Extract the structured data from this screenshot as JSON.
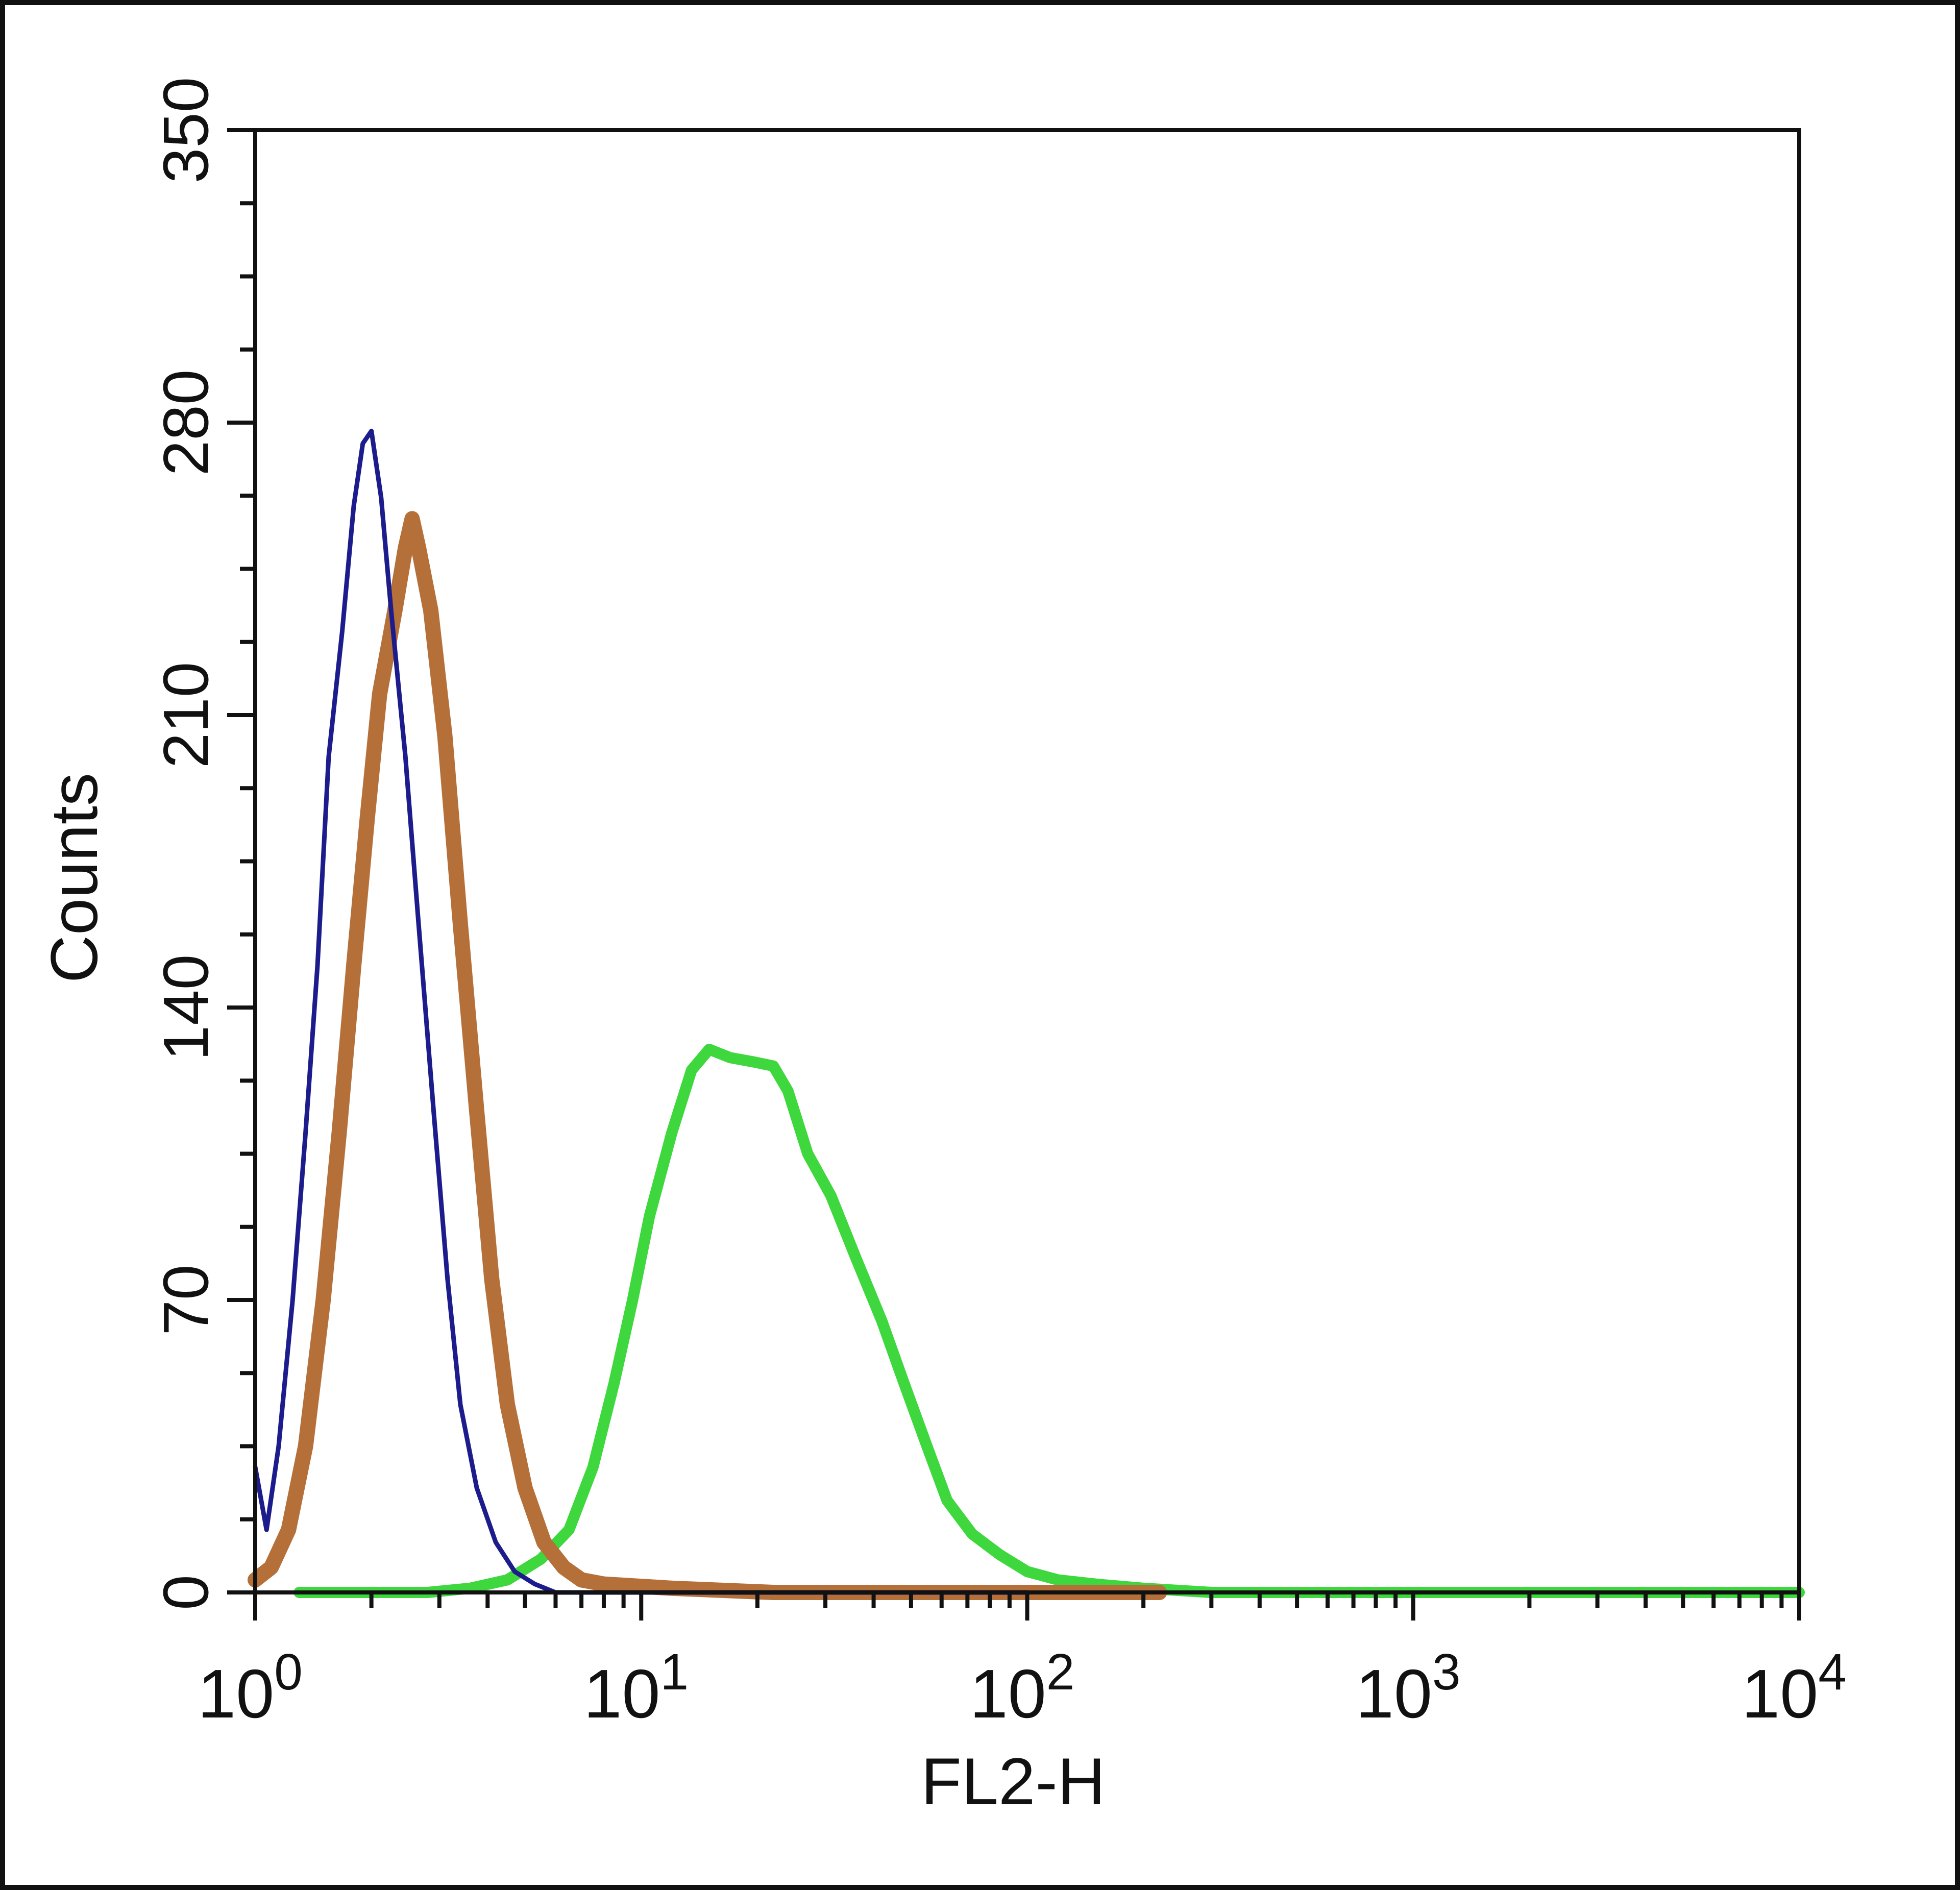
{
  "chart_data": {
    "type": "line",
    "title": "",
    "xlabel": "FL2-H",
    "ylabel": "Counts",
    "x_scale": "log",
    "xlim": [
      1,
      10000
    ],
    "ylim": [
      0,
      350
    ],
    "x_ticks": [
      {
        "value": 1,
        "base": "10",
        "exp": "0"
      },
      {
        "value": 10,
        "base": "10",
        "exp": "1"
      },
      {
        "value": 100,
        "base": "10",
        "exp": "2"
      },
      {
        "value": 1000,
        "base": "10",
        "exp": "3"
      },
      {
        "value": 10000,
        "base": "10",
        "exp": "4"
      }
    ],
    "y_ticks": [
      "0",
      "70",
      "140",
      "210",
      "280",
      "350"
    ],
    "y_tick_values": [
      0,
      70,
      140,
      210,
      280,
      350
    ],
    "grid": false,
    "legend": "none",
    "series": [
      {
        "color": "#1c1c8c",
        "points": [
          [
            1.0,
            30
          ],
          [
            1.07,
            15
          ],
          [
            1.15,
            35
          ],
          [
            1.25,
            70
          ],
          [
            1.35,
            110
          ],
          [
            1.45,
            150
          ],
          [
            1.55,
            200
          ],
          [
            1.68,
            230
          ],
          [
            1.8,
            260
          ],
          [
            1.9,
            275
          ],
          [
            2.0,
            278
          ],
          [
            2.12,
            262
          ],
          [
            2.25,
            235
          ],
          [
            2.45,
            200
          ],
          [
            2.65,
            160
          ],
          [
            2.9,
            115
          ],
          [
            3.15,
            75
          ],
          [
            3.4,
            45
          ],
          [
            3.75,
            25
          ],
          [
            4.2,
            12
          ],
          [
            4.7,
            5
          ],
          [
            5.3,
            2
          ],
          [
            6.0,
            0
          ],
          [
            100,
            0
          ]
        ]
      },
      {
        "color": "#b5703a",
        "points": [
          [
            1.0,
            3
          ],
          [
            1.1,
            6
          ],
          [
            1.22,
            15
          ],
          [
            1.35,
            35
          ],
          [
            1.5,
            70
          ],
          [
            1.65,
            110
          ],
          [
            1.8,
            150
          ],
          [
            1.95,
            185
          ],
          [
            2.1,
            215
          ],
          [
            2.3,
            235
          ],
          [
            2.45,
            250
          ],
          [
            2.55,
            257
          ],
          [
            2.65,
            250
          ],
          [
            2.85,
            235
          ],
          [
            3.1,
            205
          ],
          [
            3.4,
            160
          ],
          [
            3.75,
            115
          ],
          [
            4.1,
            75
          ],
          [
            4.5,
            45
          ],
          [
            5.0,
            25
          ],
          [
            5.6,
            12
          ],
          [
            6.3,
            6
          ],
          [
            7.0,
            3
          ],
          [
            8.0,
            2
          ],
          [
            12,
            1
          ],
          [
            22,
            0
          ],
          [
            70,
            0
          ],
          [
            220,
            0
          ]
        ]
      },
      {
        "color": "#3ed83e",
        "points": [
          [
            1.3,
            0
          ],
          [
            2.8,
            0
          ],
          [
            3.6,
            1
          ],
          [
            4.5,
            3
          ],
          [
            5.5,
            8
          ],
          [
            6.5,
            15
          ],
          [
            7.5,
            30
          ],
          [
            8.5,
            50
          ],
          [
            9.5,
            70
          ],
          [
            10.5,
            90
          ],
          [
            12,
            110
          ],
          [
            13.5,
            125
          ],
          [
            15,
            130
          ],
          [
            17,
            128
          ],
          [
            19.5,
            127
          ],
          [
            22,
            126
          ],
          [
            24,
            120
          ],
          [
            27,
            105
          ],
          [
            31,
            95
          ],
          [
            36,
            80
          ],
          [
            42,
            65
          ],
          [
            48,
            50
          ],
          [
            55,
            35
          ],
          [
            62,
            22
          ],
          [
            72,
            14
          ],
          [
            85,
            9
          ],
          [
            100,
            5
          ],
          [
            120,
            3
          ],
          [
            150,
            2
          ],
          [
            200,
            1
          ],
          [
            300,
            0
          ],
          [
            2000,
            0
          ],
          [
            10000,
            0
          ]
        ]
      }
    ]
  }
}
